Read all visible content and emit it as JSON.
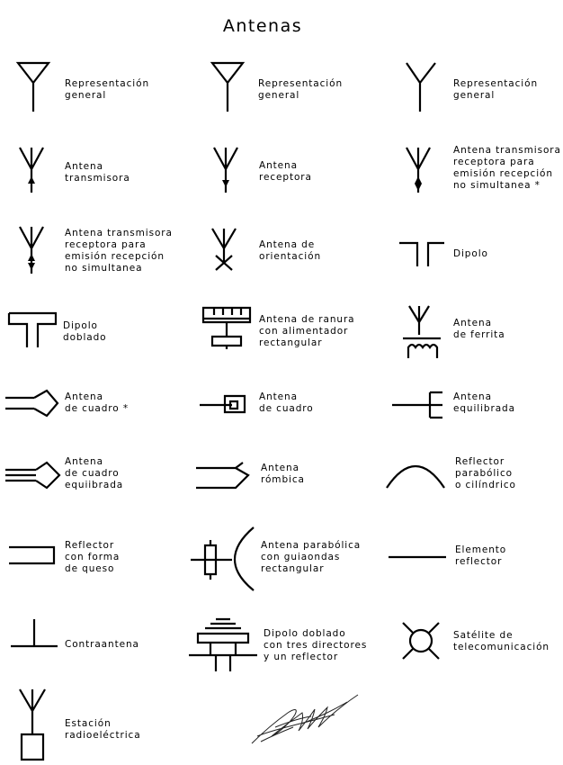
{
  "title": "Antenas",
  "items": [
    {
      "id": "rep-general-1",
      "label": "Representación\ngeneral"
    },
    {
      "id": "rep-general-2",
      "label": "Representación\ngeneral"
    },
    {
      "id": "rep-general-3",
      "label": "Representación\ngeneral"
    },
    {
      "id": "antena-transmisora",
      "label": "Antena\ntransmisora"
    },
    {
      "id": "antena-receptora",
      "label": "Antena\nreceptora"
    },
    {
      "id": "antena-tx-rx-no-simult-1",
      "label": "Antena transmisora\nreceptora para\nemisión recepción\nno simultanea *"
    },
    {
      "id": "antena-tx-rx-no-simult-2",
      "label": "Antena transmisora\nreceptora para\nemisión recepción\nno simultanea"
    },
    {
      "id": "antena-orientacion",
      "label": "Antena de\norientación"
    },
    {
      "id": "dipolo",
      "label": "Dipolo"
    },
    {
      "id": "dipolo-doblado",
      "label": "Dipolo\ndoblado"
    },
    {
      "id": "antena-ranura",
      "label": "Antena de ranura\ncon alimentador\nrectangular"
    },
    {
      "id": "antena-ferrita",
      "label": "Antena\nde ferrita"
    },
    {
      "id": "antena-cuadro-star",
      "label": "Antena\nde cuadro *"
    },
    {
      "id": "antena-cuadro",
      "label": "Antena\nde cuadro"
    },
    {
      "id": "antena-equilibrada",
      "label": "Antena\nequilibrada"
    },
    {
      "id": "antena-cuadro-equilibrada",
      "label": "Antena\nde cuadro\nequiibrada"
    },
    {
      "id": "antena-rombica",
      "label": "Antena\nrómbica"
    },
    {
      "id": "reflector-parabolico",
      "label": "Reflector\nparabólico\no cilíndrico"
    },
    {
      "id": "reflector-queso",
      "label": "Reflector\ncon forma\nde queso"
    },
    {
      "id": "antena-parabolica-guiaondas",
      "label": "Antena parabólica\ncon guiaondas\nrectangular"
    },
    {
      "id": "elemento-reflector",
      "label": "Elemento\nreflector"
    },
    {
      "id": "contraantena",
      "label": "Contraantena"
    },
    {
      "id": "dipolo-directores",
      "label": "Dipolo doblado\ncon tres directores\ny un reflector"
    },
    {
      "id": "satelite",
      "label": "Satélite de\ntelecomunicación"
    },
    {
      "id": "estacion-radio",
      "label": "Estación\nradioeléctrica"
    }
  ]
}
